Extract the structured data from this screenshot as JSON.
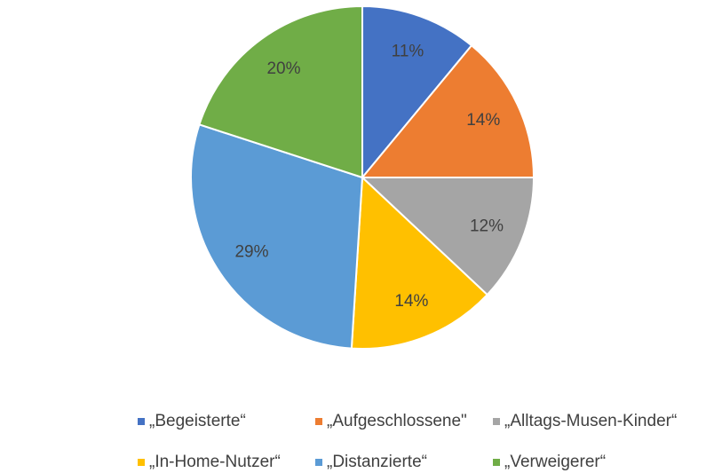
{
  "chart_data": {
    "type": "pie",
    "categories": [
      "„Begeisterte“",
      "„Aufgeschlossene\"",
      "„Alltags-Musen-Kinder“",
      "„In-Home-Nutzer“",
      "„Distanzierte“",
      "„Verweigerer“"
    ],
    "values": [
      11,
      14,
      12,
      14,
      29,
      20
    ],
    "value_labels": [
      "11%",
      "14%",
      "12%",
      "14%",
      "29%",
      "20%"
    ],
    "colors": [
      "#4472c4",
      "#ed7d31",
      "#a5a5a5",
      "#ffc000",
      "#5b9bd5",
      "#70ad47"
    ],
    "legend": "bottom"
  }
}
